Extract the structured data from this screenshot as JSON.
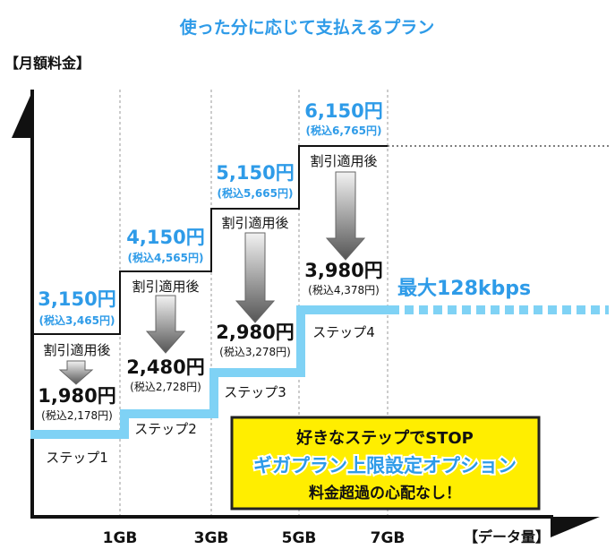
{
  "title": "使った分に応じて支払えるプラン",
  "y_axis_label": "【月額料金】",
  "x_axis_label": "【データ量】",
  "x_ticks": [
    "1GB",
    "3GB",
    "5GB",
    "7GB"
  ],
  "discount_label": "割引適用後",
  "max_speed_label": "最大128kbps",
  "colors": {
    "accent": "#2e9be8",
    "step_line": "#7fd2f5",
    "callout_bg": "#ffee00",
    "callout_border": "#222222"
  },
  "callout": {
    "line1": "好きなステップでSTOP",
    "line2": "ギガプラン上限設定オプション",
    "line3": "料金超過の心配なし！"
  },
  "chart_data": {
    "type": "step",
    "x_unit": "GB",
    "steps": [
      {
        "name": "ステップ1",
        "range": [
          "0",
          "1GB"
        ],
        "regular": "3,150円",
        "regular_tax": "(税込3,465円)",
        "discounted": "1,980円",
        "discounted_tax": "(税込2,178円)",
        "regular_value": 3150,
        "discounted_value": 1980
      },
      {
        "name": "ステップ2",
        "range": [
          "1GB",
          "3GB"
        ],
        "regular": "4,150円",
        "regular_tax": "(税込4,565円)",
        "discounted": "2,480円",
        "discounted_tax": "(税込2,728円)",
        "regular_value": 4150,
        "discounted_value": 2480
      },
      {
        "name": "ステップ3",
        "range": [
          "3GB",
          "5GB"
        ],
        "regular": "5,150円",
        "regular_tax": "(税込5,665円)",
        "discounted": "2,980円",
        "discounted_tax": "(税込3,278円)",
        "regular_value": 5150,
        "discounted_value": 2980
      },
      {
        "name": "ステップ4",
        "range": [
          "5GB",
          "7GB"
        ],
        "regular": "6,150円",
        "regular_tax": "(税込6,765円)",
        "discounted": "3,980円",
        "discounted_tax": "(税込4,378円)",
        "regular_value": 6150,
        "discounted_value": 3980
      }
    ]
  }
}
